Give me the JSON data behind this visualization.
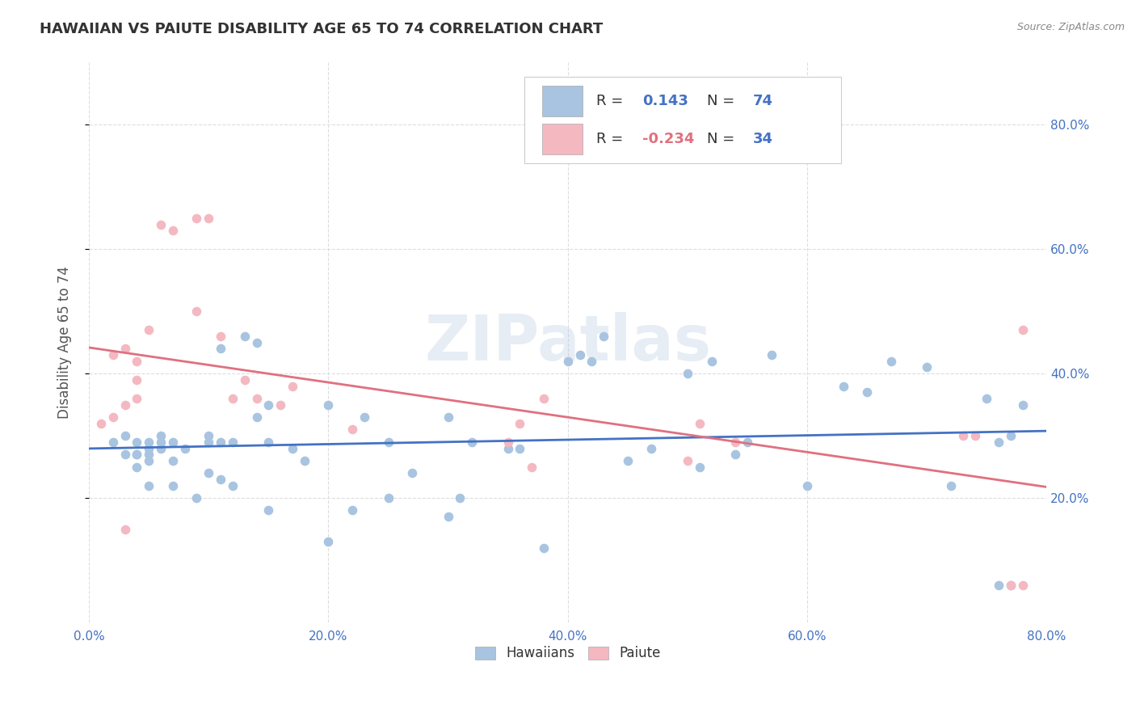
{
  "title": "HAWAIIAN VS PAIUTE DISABILITY AGE 65 TO 74 CORRELATION CHART",
  "source": "Source: ZipAtlas.com",
  "ylabel": "Disability Age 65 to 74",
  "xlim": [
    0.0,
    0.8
  ],
  "ylim": [
    0.0,
    0.9
  ],
  "xtick_labels": [
    "0.0%",
    "20.0%",
    "40.0%",
    "60.0%",
    "80.0%"
  ],
  "xtick_vals": [
    0.0,
    0.2,
    0.4,
    0.6,
    0.8
  ],
  "ytick_labels_right": [
    "20.0%",
    "40.0%",
    "60.0%",
    "80.0%"
  ],
  "ytick_vals_right": [
    0.2,
    0.4,
    0.6,
    0.8
  ],
  "hawaiian_color": "#a8c4e0",
  "paiute_color": "#f4b8c1",
  "hawaiian_line_color": "#4472c4",
  "paiute_line_color": "#e07080",
  "R_hawaiian": 0.143,
  "N_hawaiian": 74,
  "R_paiute": -0.234,
  "N_paiute": 34,
  "background_color": "#ffffff",
  "grid_color": "#dddddd",
  "watermark": "ZIPatlas",
  "hawaiian_x": [
    0.02,
    0.03,
    0.03,
    0.04,
    0.04,
    0.04,
    0.04,
    0.05,
    0.05,
    0.05,
    0.05,
    0.05,
    0.06,
    0.06,
    0.06,
    0.07,
    0.07,
    0.07,
    0.08,
    0.09,
    0.1,
    0.1,
    0.1,
    0.11,
    0.11,
    0.11,
    0.12,
    0.12,
    0.13,
    0.14,
    0.14,
    0.15,
    0.15,
    0.15,
    0.17,
    0.18,
    0.2,
    0.2,
    0.22,
    0.23,
    0.25,
    0.25,
    0.27,
    0.3,
    0.3,
    0.31,
    0.32,
    0.35,
    0.36,
    0.38,
    0.4,
    0.41,
    0.42,
    0.43,
    0.45,
    0.47,
    0.5,
    0.51,
    0.52,
    0.54,
    0.55,
    0.57,
    0.6,
    0.63,
    0.65,
    0.67,
    0.7,
    0.72,
    0.75,
    0.76,
    0.76,
    0.77,
    0.77,
    0.78
  ],
  "hawaiian_y": [
    0.29,
    0.27,
    0.3,
    0.25,
    0.27,
    0.27,
    0.29,
    0.22,
    0.26,
    0.27,
    0.28,
    0.29,
    0.28,
    0.29,
    0.3,
    0.22,
    0.26,
    0.29,
    0.28,
    0.2,
    0.24,
    0.29,
    0.3,
    0.23,
    0.29,
    0.44,
    0.22,
    0.29,
    0.46,
    0.33,
    0.45,
    0.18,
    0.29,
    0.35,
    0.28,
    0.26,
    0.13,
    0.35,
    0.18,
    0.33,
    0.2,
    0.29,
    0.24,
    0.17,
    0.33,
    0.2,
    0.29,
    0.28,
    0.28,
    0.12,
    0.42,
    0.43,
    0.42,
    0.46,
    0.26,
    0.28,
    0.4,
    0.25,
    0.42,
    0.27,
    0.29,
    0.43,
    0.22,
    0.38,
    0.37,
    0.42,
    0.41,
    0.22,
    0.36,
    0.06,
    0.29,
    0.06,
    0.3,
    0.35
  ],
  "paiute_x": [
    0.01,
    0.02,
    0.02,
    0.03,
    0.03,
    0.03,
    0.04,
    0.04,
    0.04,
    0.05,
    0.06,
    0.07,
    0.09,
    0.09,
    0.1,
    0.11,
    0.12,
    0.13,
    0.14,
    0.16,
    0.17,
    0.22,
    0.35,
    0.36,
    0.37,
    0.38,
    0.5,
    0.51,
    0.54,
    0.73,
    0.74,
    0.77,
    0.78,
    0.78
  ],
  "paiute_y": [
    0.32,
    0.33,
    0.43,
    0.15,
    0.35,
    0.44,
    0.36,
    0.39,
    0.42,
    0.47,
    0.64,
    0.63,
    0.5,
    0.65,
    0.65,
    0.46,
    0.36,
    0.39,
    0.36,
    0.35,
    0.38,
    0.31,
    0.29,
    0.32,
    0.25,
    0.36,
    0.26,
    0.32,
    0.29,
    0.3,
    0.3,
    0.06,
    0.06,
    0.47
  ]
}
